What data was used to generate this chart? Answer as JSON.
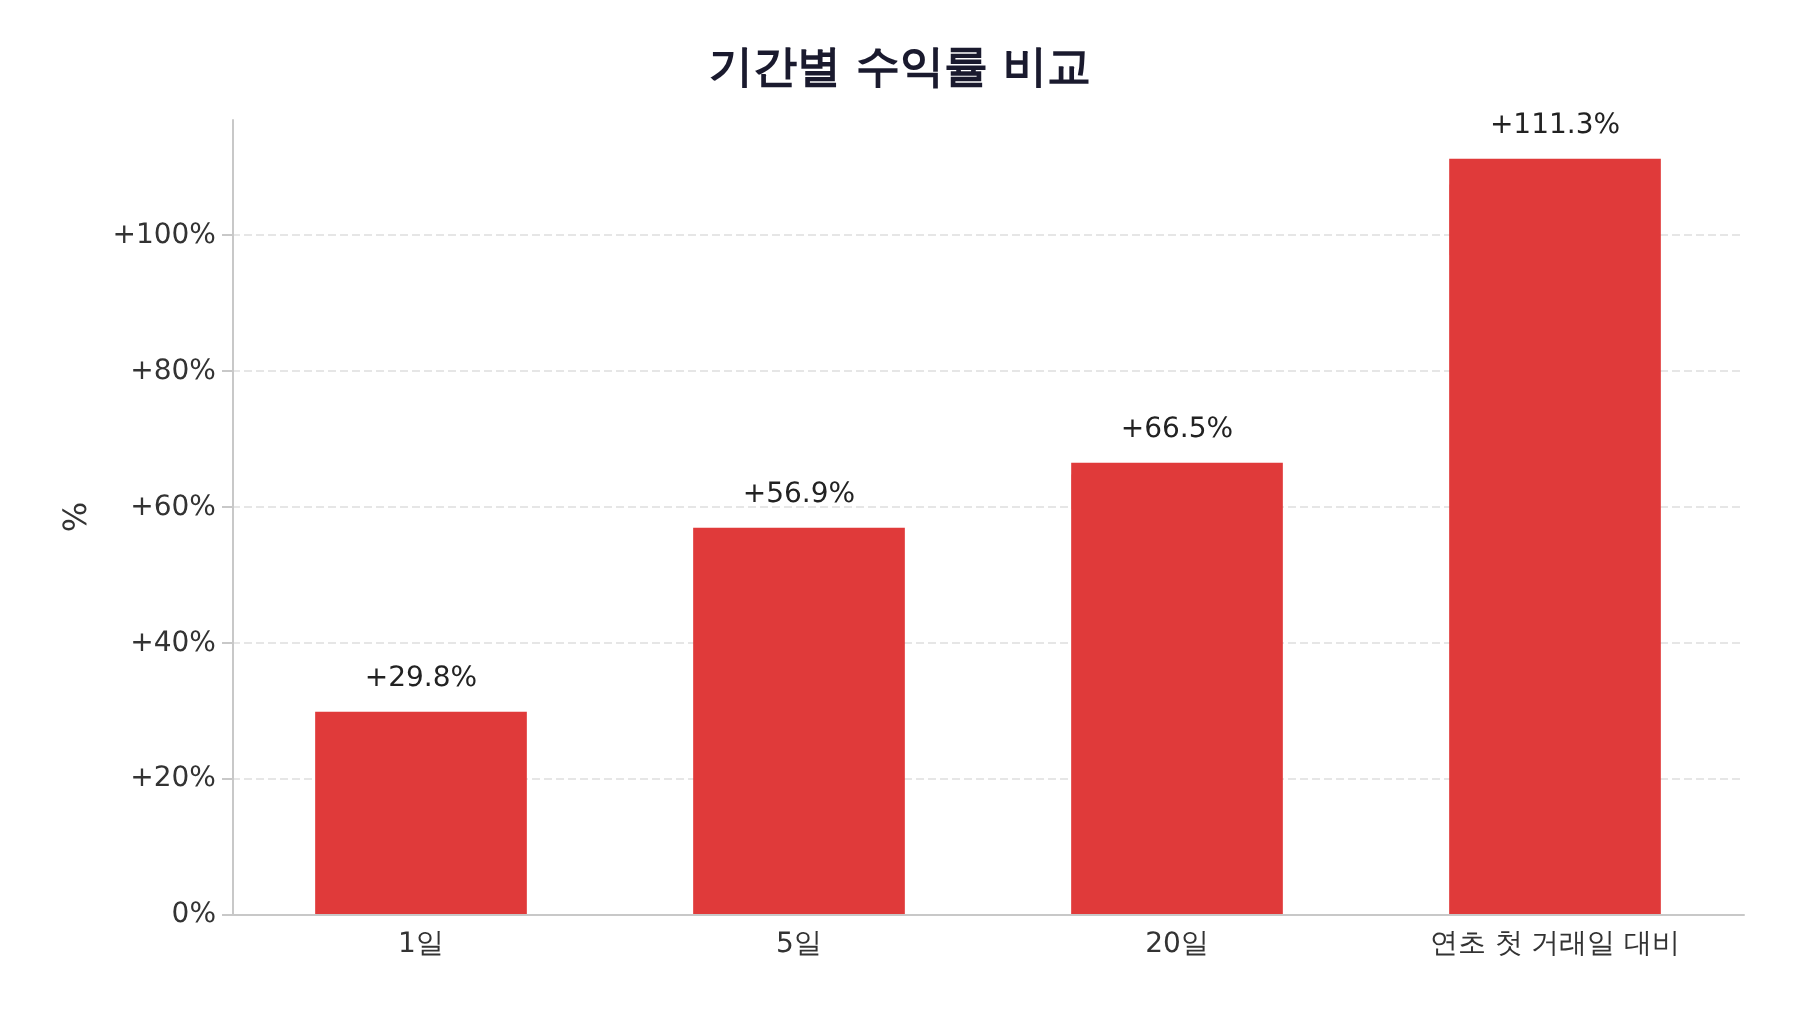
{
  "chart_data": {
    "type": "bar",
    "title": "기간별 수익률 비교",
    "ylabel": "%",
    "categories": [
      "1일",
      "5일",
      "20일",
      "연초 첫 거래일 대비"
    ],
    "values": [
      29.8,
      56.9,
      66.5,
      111.3
    ],
    "value_labels": [
      "+29.8%",
      "+56.9%",
      "+66.5%",
      "+111.3%"
    ],
    "color": "#e03a3a",
    "ylim": [
      0,
      117
    ],
    "yticks": [
      {
        "value": 0,
        "label": "0%"
      },
      {
        "value": 20,
        "label": "+20%"
      },
      {
        "value": 40,
        "label": "+40%"
      },
      {
        "value": 60,
        "label": "+60%"
      },
      {
        "value": 80,
        "label": "+80%"
      },
      {
        "value": 100,
        "label": "+100%"
      }
    ],
    "grid": "y"
  }
}
